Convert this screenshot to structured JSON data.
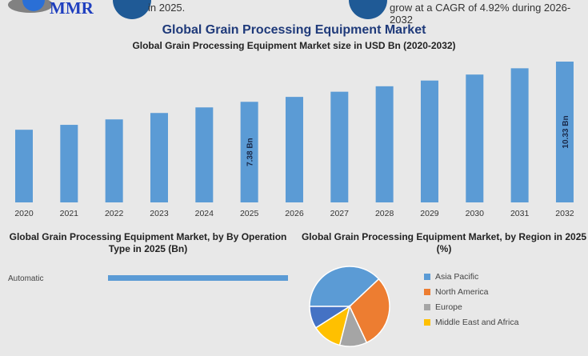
{
  "header": {
    "logo_text": "MMR",
    "stat1_text": "in 2025.",
    "stat2_text": "grow at a CAGR of 4.92% during 2026-2032"
  },
  "colors": {
    "bar": "#5b9bd5",
    "title": "#1f3a7a",
    "circle": "#1f5a96"
  },
  "chart_data": [
    {
      "type": "bar",
      "title": "Global Grain Processing Equipment Market",
      "subtitle": "Global Grain Processing Equipment Market size in USD Bn (2020-2032)",
      "categories": [
        "2020",
        "2021",
        "2022",
        "2023",
        "2024",
        "2025",
        "2026",
        "2027",
        "2028",
        "2029",
        "2030",
        "2031",
        "2032"
      ],
      "values": [
        5.33,
        5.69,
        6.09,
        6.56,
        6.97,
        7.38,
        7.74,
        8.12,
        8.52,
        8.94,
        9.38,
        9.84,
        10.33
      ],
      "data_labels": {
        "2025": "7.38 Bn",
        "2032": "10.33 Bn"
      },
      "ylim": [
        0,
        10.33
      ],
      "grid": false
    },
    {
      "type": "bar",
      "orientation": "horizontal",
      "title": "Global Grain Processing Equipment Market, by By Operation Type in 2025 (Bn)",
      "categories": [
        "Automatic"
      ]
    },
    {
      "type": "pie",
      "title": "Global Grain Processing Equipment Market, by Region in 2025 (%)",
      "legend_position": "right",
      "slices": [
        {
          "name": "Asia Pacific",
          "value": 38,
          "color": "#5b9bd5"
        },
        {
          "name": "North America",
          "value": 30,
          "color": "#ed7d31"
        },
        {
          "name": "Europe",
          "value": 11,
          "color": "#a5a5a5"
        },
        {
          "name": "Middle East and Africa",
          "value": 12,
          "color": "#ffc000"
        },
        {
          "name": "",
          "value": 9,
          "color": "#4472c4"
        }
      ]
    }
  ]
}
